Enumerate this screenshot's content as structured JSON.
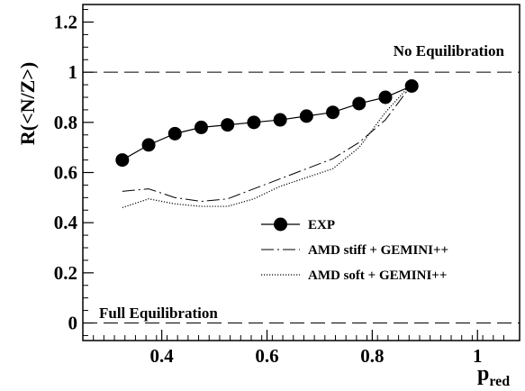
{
  "chart_data": {
    "type": "line",
    "title": "",
    "xlabel": "p",
    "xlabel_subscript": "red",
    "ylabel": "R(<N/Z>)",
    "xlim": [
      0.25,
      1.08
    ],
    "ylim": [
      -0.07,
      1.27
    ],
    "x_ticks": [
      0.4,
      0.6,
      0.8,
      1
    ],
    "x_tick_labels": [
      "0.4",
      "0.6",
      "0.8",
      "1"
    ],
    "y_ticks": [
      0,
      0.2,
      0.4,
      0.6,
      0.8,
      1,
      1.2
    ],
    "y_tick_labels": [
      "0",
      "0.2",
      "0.4",
      "0.6",
      "0.8",
      "1",
      "1.2"
    ],
    "grid": false,
    "legend_position": "center-right",
    "reference_lines": [
      {
        "y": 1,
        "label": "No Equilibration",
        "style": "dashed"
      },
      {
        "y": 0,
        "label": "Full Equilibration",
        "style": "dashed"
      }
    ],
    "series": [
      {
        "name": "EXP",
        "style": "line-markers",
        "x": [
          0.325,
          0.375,
          0.425,
          0.475,
          0.525,
          0.575,
          0.625,
          0.675,
          0.725,
          0.775,
          0.825,
          0.875
        ],
        "y": [
          0.65,
          0.71,
          0.755,
          0.78,
          0.79,
          0.8,
          0.81,
          0.825,
          0.84,
          0.875,
          0.9,
          0.945
        ]
      },
      {
        "name": "AMD stiff + GEMINI++",
        "style": "dash-dot",
        "x": [
          0.325,
          0.375,
          0.425,
          0.475,
          0.525,
          0.575,
          0.625,
          0.675,
          0.725,
          0.775,
          0.825,
          0.875
        ],
        "y": [
          0.525,
          0.535,
          0.5,
          0.485,
          0.495,
          0.535,
          0.575,
          0.615,
          0.655,
          0.72,
          0.81,
          0.95
        ]
      },
      {
        "name": "AMD soft + GEMINI++",
        "style": "dotted",
        "x": [
          0.325,
          0.375,
          0.425,
          0.475,
          0.525,
          0.575,
          0.625,
          0.675,
          0.725,
          0.775,
          0.825,
          0.875
        ],
        "y": [
          0.46,
          0.495,
          0.475,
          0.465,
          0.465,
          0.495,
          0.545,
          0.58,
          0.615,
          0.7,
          0.84,
          0.955
        ]
      }
    ]
  }
}
